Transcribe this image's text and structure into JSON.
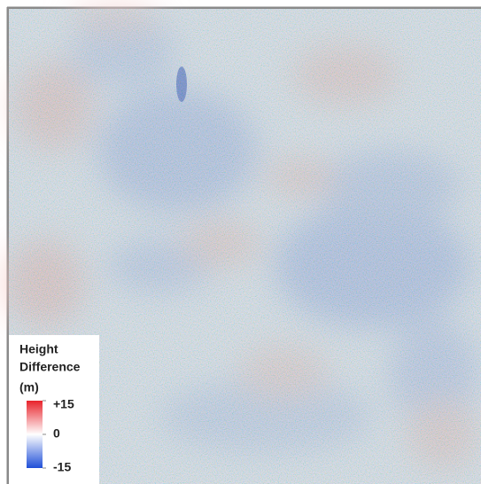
{
  "legend": {
    "title_lines": [
      "Height",
      "Difference",
      "(m)"
    ],
    "ticks": [
      {
        "value": 15,
        "label": "+15"
      },
      0,
      -15
    ],
    "colors": [
      "#e8232b",
      "#ffffff",
      "#1f4fd8"
    ]
  }
}
